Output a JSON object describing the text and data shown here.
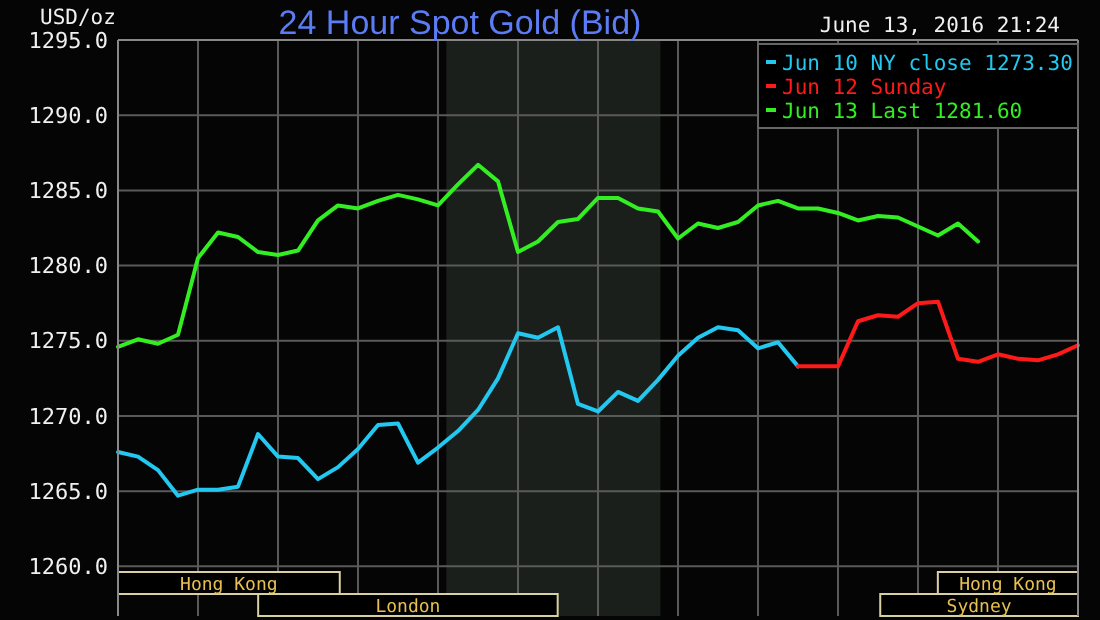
{
  "chart_data": {
    "type": "line",
    "title": "24 Hour Spot Gold (Bid)",
    "subtitle": "June 13, 2016 21:24",
    "ylabel": "USD/oz",
    "categories": [
      null,
      null,
      null,
      null,
      null,
      null,
      null,
      null,
      null,
      null,
      null,
      null,
      null,
      null,
      null,
      null,
      null,
      null,
      null,
      null,
      null,
      null,
      null,
      null,
      null,
      null,
      null,
      null,
      null,
      null,
      null,
      null,
      null,
      null,
      null,
      null,
      null,
      null,
      null,
      null,
      null,
      null,
      null,
      null,
      null,
      null,
      null,
      null,
      null
    ],
    "ylim": [
      1256.7,
      1295
    ],
    "yticks": [
      {
        "value": 1260,
        "label": "1260.0"
      },
      {
        "value": 1265,
        "label": "1265.0"
      },
      {
        "value": 1270,
        "label": "1270.0"
      },
      {
        "value": 1275,
        "label": "1275.0"
      },
      {
        "value": 1280,
        "label": "1280.0"
      },
      {
        "value": 1285,
        "label": "1285.0"
      },
      {
        "value": 1290,
        "label": "1290.0"
      },
      {
        "value": 1295,
        "label": "1295.0"
      }
    ],
    "grid": true,
    "legend": "top right",
    "annotations": [
      "Hong Kong",
      "London",
      "Hong Kong",
      "Sydney"
    ],
    "series": [
      {
        "name": "Jun 10 NY close 1273.30",
        "color": "#22c8f0",
        "values": [
          1267.6,
          1267.3,
          1266.4,
          1264.7,
          1265.1,
          1265.1,
          1265.3,
          1268.8,
          1267.3,
          1267.2,
          1265.8,
          1266.6,
          1267.8,
          1269.4,
          1269.5,
          1266.9,
          1267.9,
          1269.0,
          1270.4,
          1272.5,
          1275.5,
          1275.2,
          1275.9,
          1270.8,
          1270.3,
          1271.6,
          1271.0,
          1272.4,
          1274.0,
          1275.2,
          1275.9,
          1275.7,
          1274.5,
          1274.9,
          1273.3,
          null,
          null,
          null,
          null,
          null,
          null,
          null,
          null,
          null,
          null,
          null,
          null,
          null,
          null
        ]
      },
      {
        "name": "Jun 12 Sunday",
        "color": "#ff1a1a",
        "values": [
          null,
          null,
          null,
          null,
          null,
          null,
          null,
          null,
          null,
          null,
          null,
          null,
          null,
          null,
          null,
          null,
          null,
          null,
          null,
          null,
          null,
          null,
          null,
          null,
          null,
          null,
          null,
          null,
          null,
          null,
          null,
          null,
          null,
          null,
          1273.3,
          1273.3,
          1273.3,
          1276.3,
          1276.7,
          1276.6,
          1277.5,
          1277.6,
          1273.8,
          1273.6,
          1274.1,
          1273.8,
          1273.7,
          1274.1,
          1274.7
        ]
      },
      {
        "name": "Jun 13 Last 1281.60",
        "color": "#33ee22",
        "values": [
          1274.6,
          1275.1,
          1274.8,
          1275.4,
          1280.5,
          1282.2,
          1281.9,
          1280.9,
          1280.7,
          1281.0,
          1283.0,
          1284.0,
          1283.8,
          1284.3,
          1284.7,
          1284.4,
          1284.0,
          1285.4,
          1286.7,
          1285.6,
          1280.9,
          1281.6,
          1282.9,
          1283.1,
          1284.5,
          1284.5,
          1283.8,
          1283.6,
          1281.8,
          1282.8,
          1282.5,
          1282.9,
          1284.0,
          1284.3,
          1283.8,
          1283.8,
          1283.5,
          1283.0,
          1283.3,
          1283.2,
          1282.6,
          1282.0,
          1282.8,
          1281.6,
          null,
          null,
          null,
          null,
          null
        ]
      }
    ]
  }
}
